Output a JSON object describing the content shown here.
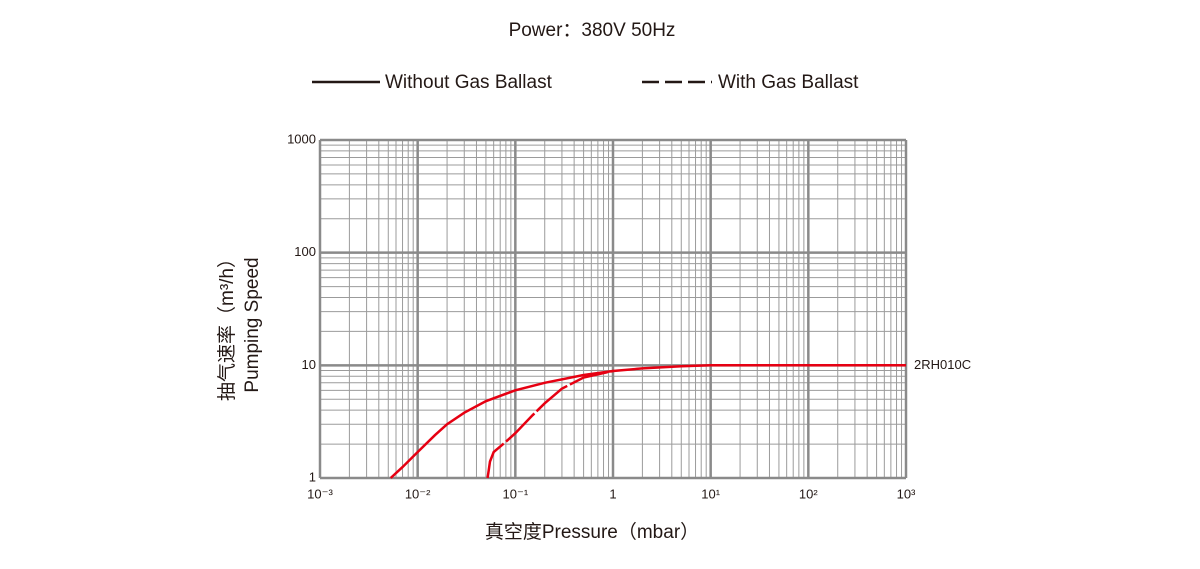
{
  "chart_data": {
    "type": "line",
    "title": "Power：380V 50Hz",
    "y_label": [
      "抽气速率（m³/h）",
      "Pumping Speed"
    ],
    "x_label": "真空度Pressure（mbar）",
    "annotation": "2RH010C",
    "xscale": "log",
    "yscale": "log",
    "xlim": [
      0.001,
      1000
    ],
    "ylim": [
      1,
      1000
    ],
    "xticks": [
      {
        "value": 0.001,
        "label": "10⁻³"
      },
      {
        "value": 0.01,
        "label": "10⁻²"
      },
      {
        "value": 0.1,
        "label": "10⁻¹"
      },
      1,
      {
        "value": 10,
        "label": "10¹"
      },
      {
        "value": 100,
        "label": "10²"
      },
      {
        "value": 1000,
        "label": "10³"
      }
    ],
    "yticks": [
      1,
      10,
      100,
      1000
    ],
    "grid": true,
    "series": [
      {
        "name": "Without Gas Ballast",
        "color": "#e60012",
        "dashed": false,
        "x": [
          0.0053,
          0.007,
          0.01,
          0.015,
          0.02,
          0.03,
          0.05,
          0.1,
          0.2,
          0.5,
          1,
          2,
          5,
          10,
          100,
          1000
        ],
        "values": [
          1,
          1.25,
          1.7,
          2.4,
          3,
          3.8,
          4.8,
          6,
          7,
          8.2,
          8.9,
          9.4,
          9.8,
          10,
          10,
          10
        ]
      },
      {
        "name": "With Gas Ballast",
        "color": "#e60012",
        "dashed": true,
        "x": [
          0.052,
          0.055,
          0.06,
          0.08,
          0.1,
          0.15,
          0.2,
          0.3,
          0.5,
          1
        ],
        "values": [
          1,
          1.4,
          1.7,
          2.1,
          2.5,
          3.6,
          4.6,
          6.2,
          7.8,
          8.9
        ]
      }
    ]
  }
}
